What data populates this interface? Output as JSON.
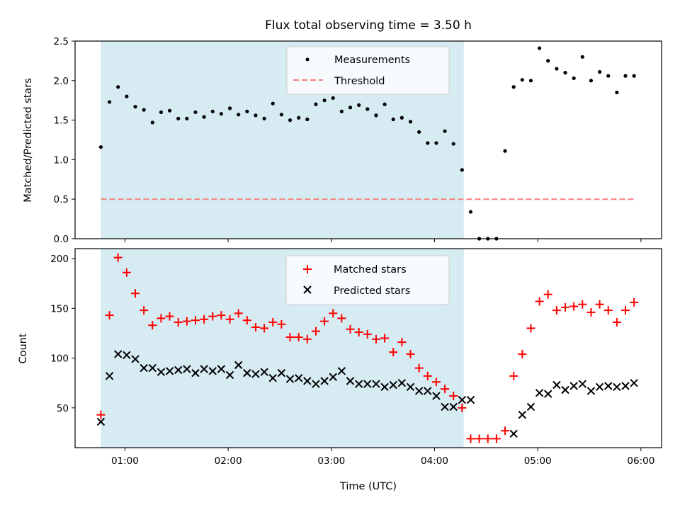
{
  "chart_data": [
    {
      "type": "scatter",
      "title": "Flux total observing time = 3.50 h",
      "ylabel": "Matched/Predicted stars",
      "xlim": [
        "00:31",
        "06:12"
      ],
      "ylim": [
        0,
        2.5
      ],
      "yticks": [
        "0.0",
        "0.5",
        "1.0",
        "1.5",
        "2.0",
        "2.5"
      ],
      "shaded_interval": [
        "00:46",
        "04:17"
      ],
      "legend_position": "upper-center",
      "series": [
        {
          "name": "Measurements",
          "marker": "dot",
          "color": "#000000",
          "x": [
            "00:46",
            "00:51",
            "00:56",
            "01:01",
            "01:06",
            "01:11",
            "01:16",
            "01:21",
            "01:26",
            "01:31",
            "01:36",
            "01:41",
            "01:46",
            "01:51",
            "01:56",
            "02:01",
            "02:06",
            "02:11",
            "02:16",
            "02:21",
            "02:26",
            "02:31",
            "02:36",
            "02:41",
            "02:46",
            "02:51",
            "02:56",
            "03:01",
            "03:06",
            "03:11",
            "03:16",
            "03:21",
            "03:26",
            "03:31",
            "03:36",
            "03:41",
            "03:46",
            "03:51",
            "03:56",
            "04:01",
            "04:06",
            "04:11",
            "04:16",
            "04:21",
            "04:26",
            "04:31",
            "04:36",
            "04:41",
            "04:46",
            "04:51",
            "04:56",
            "05:01",
            "05:06",
            "05:11",
            "05:16",
            "05:21",
            "05:26",
            "05:31",
            "05:36",
            "05:41",
            "05:46",
            "05:51",
            "05:56"
          ],
          "y": [
            1.16,
            1.73,
            1.92,
            1.8,
            1.67,
            1.63,
            1.47,
            1.6,
            1.62,
            1.52,
            1.52,
            1.6,
            1.54,
            1.61,
            1.58,
            1.65,
            1.57,
            1.61,
            1.56,
            1.52,
            1.71,
            1.57,
            1.5,
            1.53,
            1.51,
            1.7,
            1.75,
            1.78,
            1.61,
            1.66,
            1.69,
            1.64,
            1.56,
            1.7,
            1.51,
            1.53,
            1.48,
            1.35,
            1.21,
            1.21,
            1.36,
            1.2,
            0.87,
            0.34,
            0.0,
            0.0,
            0.0,
            1.11,
            1.92,
            2.01,
            2.0,
            2.41,
            2.25,
            2.15,
            2.1,
            2.03,
            2.3,
            2.0,
            2.11,
            2.06,
            1.85,
            2.06,
            2.06
          ]
        },
        {
          "name": "Threshold",
          "line_style": "dashed",
          "color": "#f77f7f",
          "x": [
            "00:46",
            "05:56"
          ],
          "y": [
            0.5,
            0.5
          ]
        }
      ]
    },
    {
      "type": "scatter",
      "xlabel": "Time (UTC)",
      "ylabel": "Count",
      "xlim": [
        "00:31",
        "06:12"
      ],
      "ylim": [
        10,
        210
      ],
      "xticks": [
        "01:00",
        "02:00",
        "03:00",
        "04:00",
        "05:00",
        "06:00"
      ],
      "yticks": [
        "50",
        "100",
        "150",
        "200"
      ],
      "shaded_interval": [
        "00:46",
        "04:17"
      ],
      "legend_position": "upper-center",
      "series": [
        {
          "name": "Matched stars",
          "marker": "plus",
          "color": "#ff0000",
          "x": [
            "00:46",
            "00:51",
            "00:56",
            "01:01",
            "01:06",
            "01:11",
            "01:16",
            "01:21",
            "01:26",
            "01:31",
            "01:36",
            "01:41",
            "01:46",
            "01:51",
            "01:56",
            "02:01",
            "02:06",
            "02:11",
            "02:16",
            "02:21",
            "02:26",
            "02:31",
            "02:36",
            "02:41",
            "02:46",
            "02:51",
            "02:56",
            "03:01",
            "03:06",
            "03:11",
            "03:16",
            "03:21",
            "03:26",
            "03:31",
            "03:36",
            "03:41",
            "03:46",
            "03:51",
            "03:56",
            "04:01",
            "04:06",
            "04:11",
            "04:16",
            "04:21",
            "04:26",
            "04:31",
            "04:36",
            "04:41",
            "04:46",
            "04:51",
            "04:56",
            "05:01",
            "05:06",
            "05:11",
            "05:16",
            "05:21",
            "05:26",
            "05:31",
            "05:36",
            "05:41",
            "05:46",
            "05:51",
            "05:56"
          ],
          "y": [
            43,
            143,
            201,
            186,
            165,
            148,
            133,
            140,
            142,
            136,
            137,
            138,
            139,
            142,
            143,
            139,
            145,
            138,
            131,
            130,
            136,
            134,
            121,
            121,
            119,
            127,
            137,
            145,
            140,
            129,
            126,
            124,
            119,
            120,
            106,
            116,
            104,
            90,
            82,
            76,
            69,
            62,
            50,
            19,
            19,
            19,
            19,
            27,
            82,
            104,
            130,
            157,
            164,
            148,
            151,
            152,
            154,
            146,
            154,
            148,
            136,
            148,
            156
          ]
        },
        {
          "name": "Predicted stars",
          "marker": "cross",
          "color": "#000000",
          "x": [
            "00:46",
            "00:51",
            "00:56",
            "01:01",
            "01:06",
            "01:11",
            "01:16",
            "01:21",
            "01:26",
            "01:31",
            "01:36",
            "01:41",
            "01:46",
            "01:51",
            "01:56",
            "02:01",
            "02:06",
            "02:11",
            "02:16",
            "02:21",
            "02:26",
            "02:31",
            "02:36",
            "02:41",
            "02:46",
            "02:51",
            "02:56",
            "03:01",
            "03:06",
            "03:11",
            "03:16",
            "03:21",
            "03:26",
            "03:31",
            "03:36",
            "03:41",
            "03:46",
            "03:51",
            "03:56",
            "04:01",
            "04:06",
            "04:11",
            "04:16",
            "04:21",
            "04:46",
            "04:51",
            "04:56",
            "05:01",
            "05:06",
            "05:11",
            "05:16",
            "05:21",
            "05:26",
            "05:31",
            "05:36",
            "05:41",
            "05:46",
            "05:51",
            "05:56"
          ],
          "y": [
            36,
            82,
            104,
            103,
            99,
            90,
            90,
            86,
            87,
            88,
            89,
            85,
            89,
            87,
            89,
            83,
            93,
            85,
            84,
            86,
            80,
            85,
            79,
            80,
            77,
            74,
            77,
            81,
            87,
            77,
            74,
            74,
            74,
            71,
            73,
            75,
            71,
            67,
            67,
            62,
            51,
            51,
            58,
            58,
            24,
            43,
            51,
            65,
            64,
            73,
            68,
            72,
            74,
            67,
            71,
            72,
            71,
            72,
            75
          ]
        }
      ]
    }
  ]
}
